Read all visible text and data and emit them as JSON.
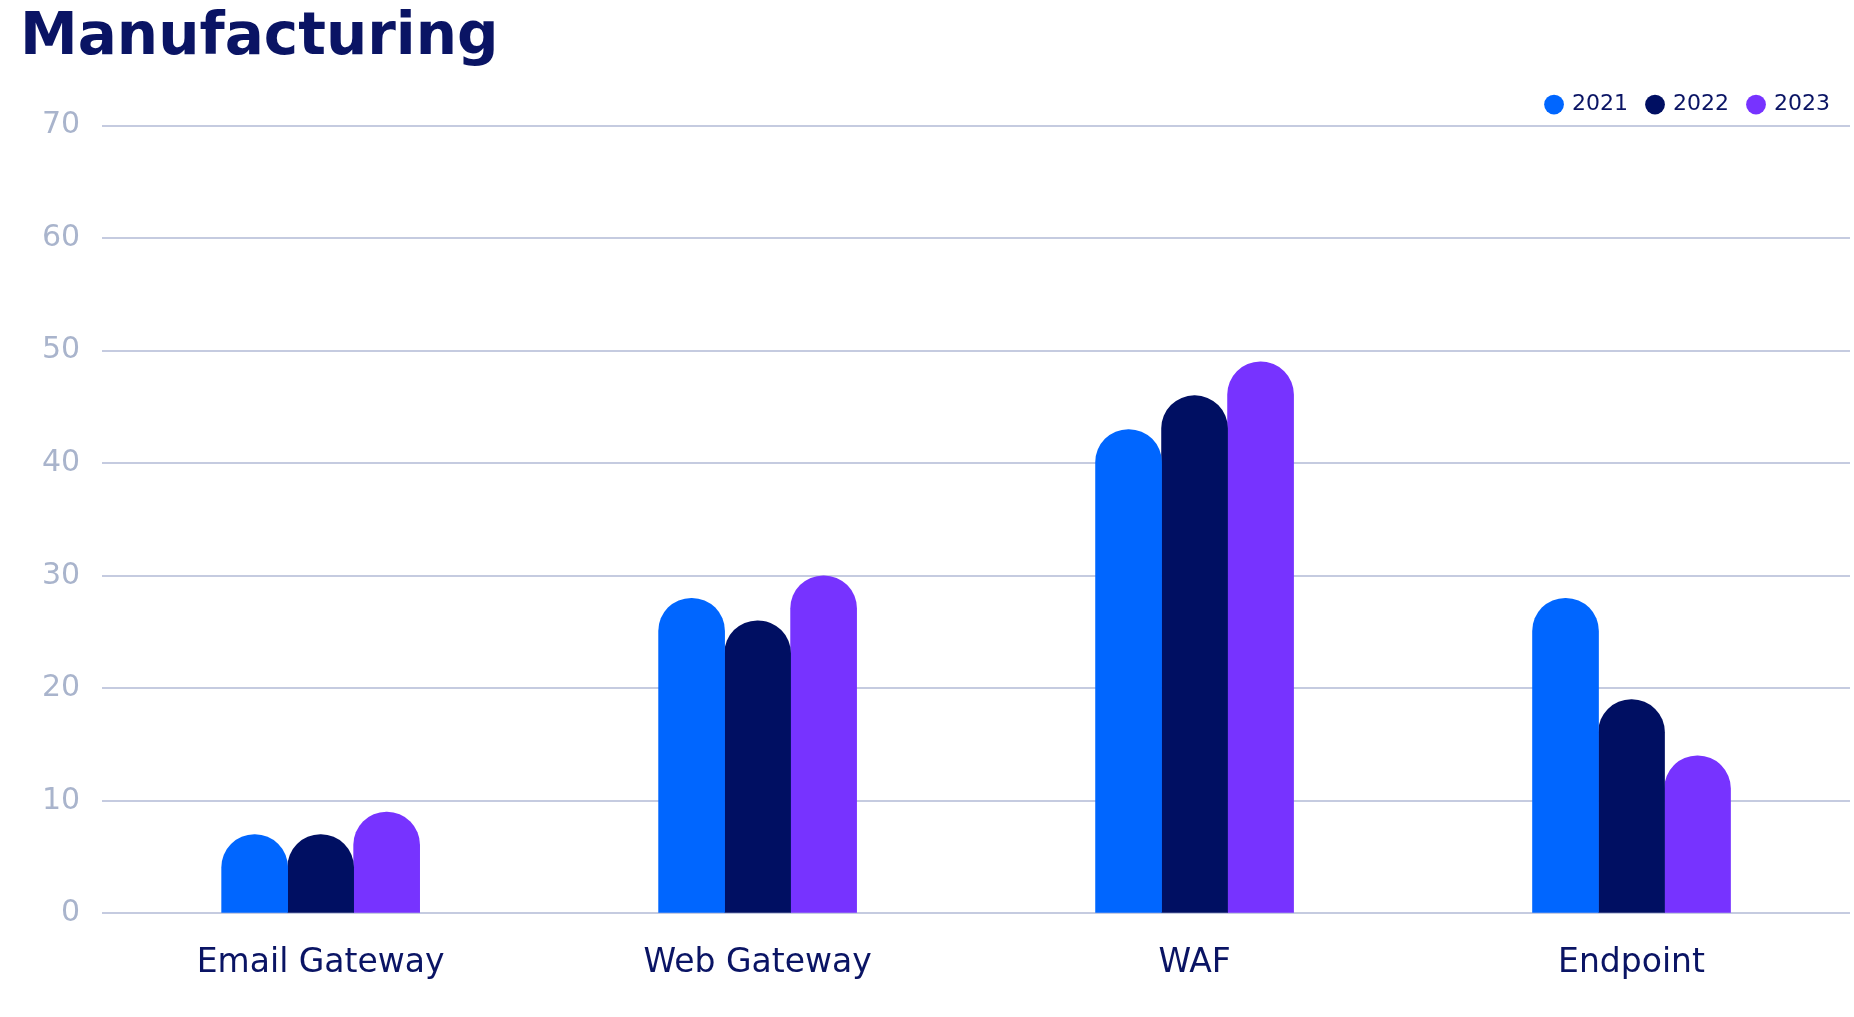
{
  "chart_data": {
    "type": "bar",
    "title": "Manufacturing",
    "categories": [
      "Email Gateway",
      "Web Gateway",
      "WAF",
      "Endpoint"
    ],
    "series": [
      {
        "name": "2021",
        "color": "#0066ff",
        "values": [
          7,
          28,
          43,
          28
        ]
      },
      {
        "name": "2022",
        "color": "#000f62",
        "values": [
          7,
          26,
          46,
          19
        ]
      },
      {
        "name": "2023",
        "color": "#7733ff",
        "values": [
          9,
          30,
          49,
          14
        ]
      }
    ],
    "ylim": [
      0,
      70
    ],
    "yticks": [
      0,
      10,
      20,
      30,
      40,
      50,
      60,
      70
    ],
    "grid": "y",
    "legend": "top right"
  }
}
